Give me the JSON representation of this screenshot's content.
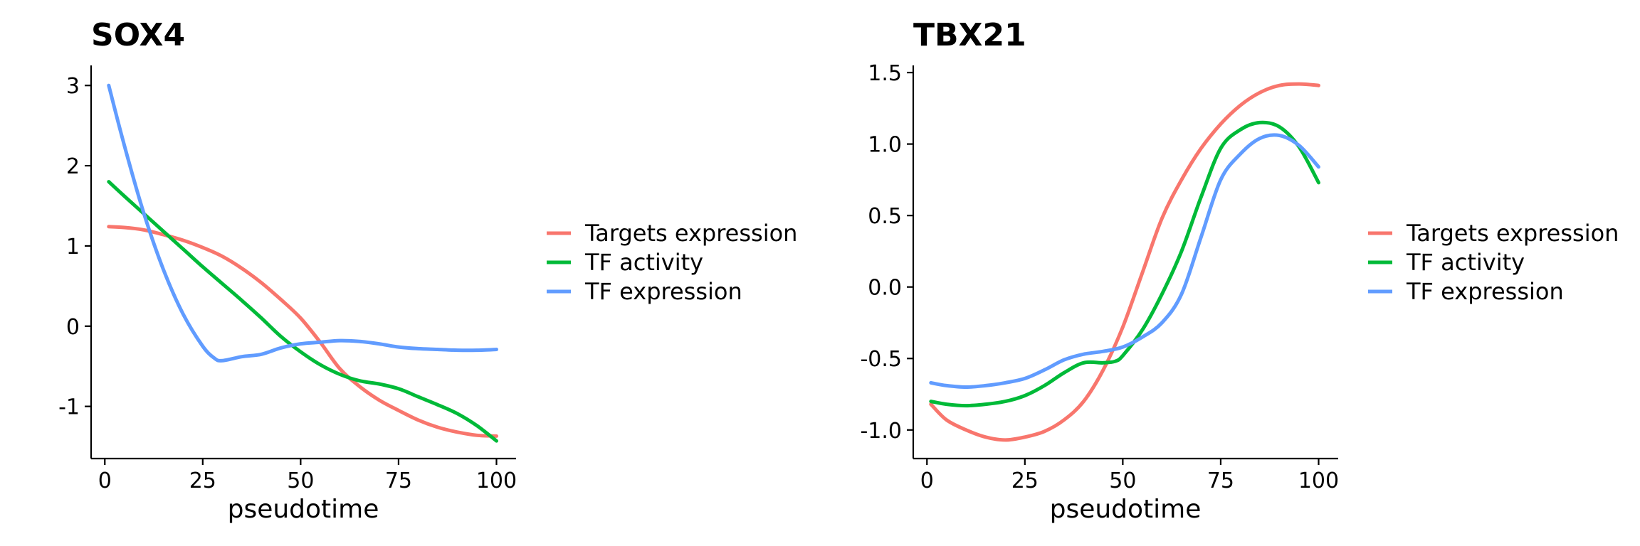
{
  "colors": {
    "Targets expression": "#F8766D",
    "TF activity": "#00BA38",
    "TF expression": "#619CFF"
  },
  "chart_data": [
    {
      "type": "line",
      "title": "SOX4",
      "xlabel": "pseudotime",
      "ylabel": "",
      "xlim": [
        -3.5,
        105
      ],
      "ylim": [
        -1.65,
        3.25
      ],
      "xticks": [
        0,
        25,
        50,
        75,
        100
      ],
      "yticks": [
        -1,
        0,
        1,
        2,
        3
      ],
      "xtick_labels": [
        "0",
        "25",
        "50",
        "75",
        "100"
      ],
      "ytick_labels": [
        "-1",
        "0",
        "1",
        "2",
        "3"
      ],
      "legend": [
        "Targets expression",
        "TF activity",
        "TF expression"
      ],
      "legend_position": "right",
      "grid": false,
      "series": [
        {
          "name": "Targets expression",
          "x": [
            1,
            5,
            10,
            15,
            20,
            25,
            30,
            35,
            40,
            45,
            50,
            55,
            60,
            65,
            70,
            75,
            80,
            85,
            90,
            95,
            100
          ],
          "y": [
            1.24,
            1.23,
            1.2,
            1.14,
            1.07,
            0.98,
            0.87,
            0.72,
            0.54,
            0.33,
            0.1,
            -0.2,
            -0.53,
            -0.75,
            -0.92,
            -1.05,
            -1.17,
            -1.26,
            -1.32,
            -1.36,
            -1.37
          ]
        },
        {
          "name": "TF activity",
          "x": [
            1,
            5,
            10,
            15,
            20,
            25,
            30,
            35,
            40,
            45,
            50,
            55,
            60,
            65,
            70,
            75,
            80,
            85,
            90,
            95,
            100
          ],
          "y": [
            1.8,
            1.62,
            1.4,
            1.18,
            0.96,
            0.74,
            0.53,
            0.32,
            0.1,
            -0.13,
            -0.32,
            -0.48,
            -0.6,
            -0.68,
            -0.72,
            -0.78,
            -0.88,
            -0.98,
            -1.09,
            -1.24,
            -1.43
          ]
        },
        {
          "name": "TF expression",
          "x": [
            1,
            5,
            10,
            15,
            20,
            25,
            28,
            30,
            35,
            40,
            45,
            50,
            55,
            60,
            65,
            70,
            75,
            80,
            85,
            90,
            95,
            100
          ],
          "y": [
            3.0,
            2.25,
            1.4,
            0.7,
            0.15,
            -0.25,
            -0.4,
            -0.43,
            -0.38,
            -0.35,
            -0.27,
            -0.22,
            -0.2,
            -0.18,
            -0.19,
            -0.22,
            -0.26,
            -0.28,
            -0.29,
            -0.3,
            -0.3,
            -0.29
          ]
        }
      ]
    },
    {
      "type": "line",
      "title": "TBX21",
      "xlabel": "pseudotime",
      "ylabel": "",
      "xlim": [
        -3.5,
        105
      ],
      "ylim": [
        -1.2,
        1.55
      ],
      "xticks": [
        0,
        25,
        50,
        75,
        100
      ],
      "yticks": [
        -1.0,
        -0.5,
        0.0,
        0.5,
        1.0,
        1.5
      ],
      "xtick_labels": [
        "0",
        "25",
        "50",
        "75",
        "100"
      ],
      "ytick_labels": [
        "-1.0",
        "-0.5",
        "0.0",
        "0.5",
        "1.0",
        "1.5"
      ],
      "legend": [
        "Targets expression",
        "TF activity",
        "TF expression"
      ],
      "legend_position": "right",
      "grid": false,
      "series": [
        {
          "name": "Targets expression",
          "x": [
            1,
            5,
            10,
            15,
            20,
            25,
            30,
            35,
            40,
            45,
            50,
            55,
            60,
            65,
            70,
            75,
            80,
            85,
            90,
            95,
            100
          ],
          "y": [
            -0.82,
            -0.93,
            -1.0,
            -1.05,
            -1.07,
            -1.05,
            -1.01,
            -0.93,
            -0.8,
            -0.58,
            -0.28,
            0.1,
            0.48,
            0.75,
            0.97,
            1.14,
            1.27,
            1.36,
            1.41,
            1.42,
            1.41
          ]
        },
        {
          "name": "TF activity",
          "x": [
            1,
            5,
            10,
            15,
            20,
            25,
            30,
            35,
            40,
            45,
            48,
            50,
            55,
            60,
            65,
            70,
            75,
            80,
            85,
            90,
            95,
            100
          ],
          "y": [
            -0.8,
            -0.82,
            -0.83,
            -0.82,
            -0.8,
            -0.76,
            -0.69,
            -0.6,
            -0.53,
            -0.53,
            -0.52,
            -0.48,
            -0.3,
            -0.05,
            0.25,
            0.63,
            0.97,
            1.1,
            1.15,
            1.12,
            0.98,
            0.73
          ]
        },
        {
          "name": "TF expression",
          "x": [
            1,
            5,
            10,
            15,
            20,
            25,
            30,
            35,
            40,
            45,
            50,
            55,
            60,
            65,
            70,
            75,
            80,
            85,
            90,
            95,
            100
          ],
          "y": [
            -0.67,
            -0.69,
            -0.7,
            -0.69,
            -0.67,
            -0.64,
            -0.58,
            -0.51,
            -0.47,
            -0.45,
            -0.42,
            -0.35,
            -0.25,
            -0.05,
            0.35,
            0.75,
            0.93,
            1.04,
            1.06,
            0.99,
            0.84
          ]
        }
      ]
    }
  ]
}
